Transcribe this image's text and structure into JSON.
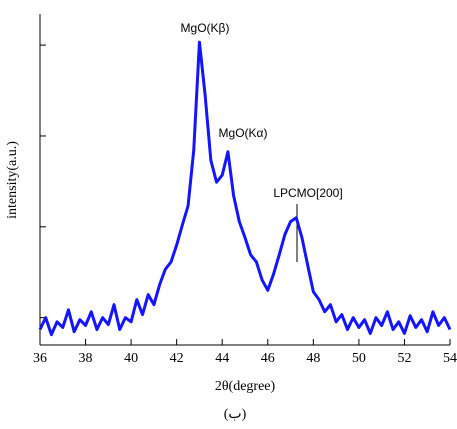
{
  "chart_data": {
    "type": "line",
    "x_label": "2θ(degree)",
    "y_label": "intensity(a.u.)",
    "caption": "(ب)",
    "annotations": [
      "MgO(Kβ)",
      "MgO(Kα)",
      "LPCMO[200]"
    ],
    "x": [
      36,
      36.25,
      36.5,
      36.75,
      37,
      37.25,
      37.5,
      37.75,
      38,
      38.25,
      38.5,
      38.75,
      39,
      39.25,
      39.5,
      39.75,
      40,
      40.25,
      40.5,
      40.75,
      41,
      41.25,
      41.5,
      41.75,
      42,
      42.25,
      42.5,
      42.75,
      43,
      43.25,
      43.5,
      43.75,
      44,
      44.25,
      44.5,
      44.75,
      45,
      45.25,
      45.5,
      45.75,
      46,
      46.25,
      46.5,
      46.75,
      47,
      47.25,
      47.5,
      47.75,
      48,
      48.25,
      48.5,
      48.75,
      49,
      49.25,
      49.5,
      49.75,
      50,
      50.25,
      50.5,
      50.75,
      51,
      51.25,
      51.5,
      51.75,
      52,
      52.25,
      52.5,
      52.75,
      53,
      53.25,
      53.5,
      53.75,
      54
    ],
    "values": [
      0.74,
      1.0,
      0.65,
      0.9,
      0.78,
      1.22,
      0.7,
      0.95,
      0.82,
      1.16,
      0.74,
      1.0,
      0.84,
      1.39,
      0.74,
      1.0,
      0.9,
      1.58,
      1.08,
      1.79,
      1.39,
      2.3,
      3.4,
      4.1,
      6.3,
      10.5,
      17,
      70,
      1080,
      280,
      54,
      31,
      37,
      67,
      22,
      11.4,
      7.6,
      4.9,
      4.1,
      2.6,
      2.0,
      3.0,
      4.9,
      8.2,
      11.4,
      12.6,
      7.6,
      3.8,
      1.93,
      1.58,
      1.16,
      1.39,
      0.9,
      1.08,
      0.74,
      1.0,
      0.78,
      0.95,
      0.67,
      1.0,
      0.82,
      1.16,
      0.74,
      0.9,
      0.67,
      1.05,
      0.78,
      0.95,
      0.7,
      1.16,
      0.82,
      1.0,
      0.74
    ],
    "color": "#1414ff",
    "log_scale": true,
    "xlim": [
      36,
      54
    ],
    "xticks": [
      36,
      38,
      40,
      42,
      44,
      46,
      48,
      50,
      52,
      54
    ],
    "ylim": [
      0.5,
      2200
    ],
    "yticks": [
      1,
      10,
      100,
      1000
    ]
  }
}
